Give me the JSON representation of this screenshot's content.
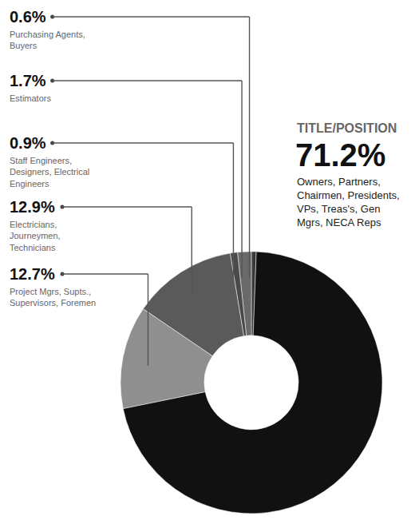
{
  "chart_data": {
    "type": "pie",
    "title": "TITLE/POSITION",
    "categories": [
      "Purchasing Agents, Buyers",
      "Estimators",
      "Staff Engineers, Designers, Electrical Engineers",
      "Electricians, Journeymen, Technicians",
      "Project Mgrs, Supts., Supervisors, Foremen",
      "Owners, Partners, Chairmen, Presidents, VPs, Treas's, Gen Mgrs, NECA Reps"
    ],
    "values": [
      0.6,
      1.7,
      0.9,
      12.9,
      12.7,
      71.2
    ],
    "value_labels": [
      "0.6%",
      "1.7%",
      "0.9%",
      "12.9%",
      "12.7%",
      "71.2%"
    ],
    "colors": [
      "#3a3a3a",
      "#6a6a6a",
      "#4a4a4a",
      "#5a5a5a",
      "#8f8f8f",
      "#111111"
    ],
    "data_labels": true
  }
}
